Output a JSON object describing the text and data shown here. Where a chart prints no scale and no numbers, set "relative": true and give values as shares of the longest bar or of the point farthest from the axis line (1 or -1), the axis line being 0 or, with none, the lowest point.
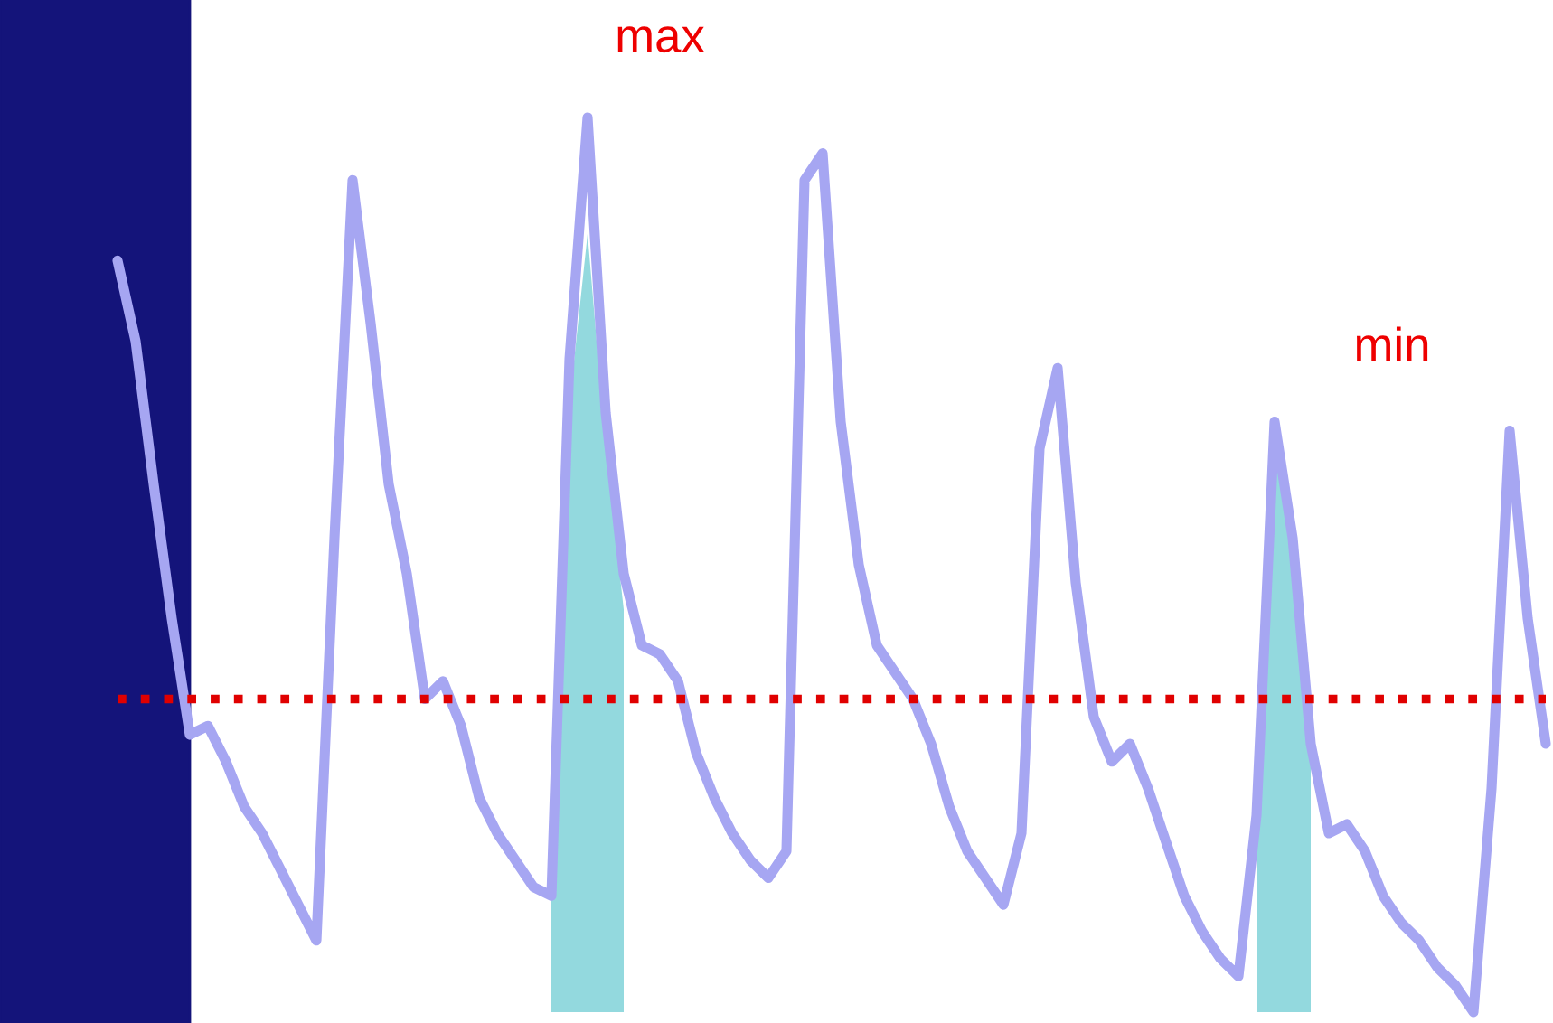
{
  "chart_data": {
    "type": "line",
    "relative": true,
    "categories": [
      null,
      null,
      null,
      null,
      null,
      null,
      null,
      null,
      null,
      null,
      null,
      null,
      null,
      null,
      null,
      null,
      null,
      null,
      null,
      null,
      null,
      null,
      null,
      null,
      null,
      null,
      null,
      null,
      null,
      null,
      null,
      null,
      null,
      null,
      null,
      null,
      null,
      null,
      null,
      null,
      null,
      null,
      null,
      null,
      null,
      null,
      null,
      null,
      null,
      null,
      null,
      null,
      null,
      null,
      null,
      null,
      null,
      null,
      null,
      null,
      null,
      null,
      null,
      null,
      null,
      null,
      null,
      null,
      null,
      null,
      null,
      null,
      null,
      null,
      null,
      null,
      null,
      null,
      null,
      null
    ],
    "series": [
      {
        "color": "#a6a6f2",
        "values": [
          0.84,
          0.75,
          0.59,
          0.44,
          0.31,
          0.32,
          0.28,
          0.23,
          0.2,
          0.16,
          0.12,
          0.08,
          0.53,
          0.93,
          0.77,
          0.59,
          0.49,
          0.35,
          0.37,
          0.32,
          0.24,
          0.2,
          0.17,
          0.14,
          0.13,
          0.73,
          1.0,
          0.67,
          0.49,
          0.41,
          0.4,
          0.37,
          0.29,
          0.24,
          0.2,
          0.17,
          0.15,
          0.18,
          0.93,
          0.96,
          0.66,
          0.5,
          0.41,
          0.38,
          0.35,
          0.3,
          0.23,
          0.18,
          0.15,
          0.12,
          0.2,
          0.63,
          0.72,
          0.48,
          0.33,
          0.28,
          0.3,
          0.25,
          0.19,
          0.13,
          0.09,
          0.06,
          0.04,
          0.22,
          0.66,
          0.53,
          0.3,
          0.2,
          0.21,
          0.18,
          0.13,
          0.1,
          0.08,
          0.05,
          0.03,
          0.0,
          0.25,
          0.65,
          0.44,
          0.3
        ]
      },
      {
        "type": "area",
        "color": "#93d9de",
        "values": [
          null,
          null,
          null,
          null,
          null,
          null,
          null,
          null,
          null,
          null,
          null,
          null,
          null,
          null,
          null,
          null,
          null,
          null,
          null,
          null,
          null,
          null,
          null,
          null,
          0.13,
          0.68,
          0.87,
          0.63,
          0.45,
          null,
          null,
          null,
          null,
          null,
          null,
          null,
          null,
          null,
          null,
          null,
          null,
          null,
          null,
          null,
          null,
          null,
          null,
          null,
          null,
          null,
          null,
          null,
          null,
          null,
          null,
          null,
          null,
          null,
          null,
          null,
          null,
          null,
          null,
          0.2,
          0.66,
          0.5,
          0.29,
          null,
          null,
          null,
          null,
          null,
          null,
          null,
          null,
          null,
          null,
          null,
          null,
          null
        ]
      },
      {
        "color": "#e00000",
        "line_style": "dotted",
        "values": [
          0.35,
          0.35,
          0.35,
          0.35,
          0.35,
          0.35,
          0.35,
          0.35,
          0.35,
          0.35,
          0.35,
          0.35,
          0.35,
          0.35,
          0.35,
          0.35,
          0.35,
          0.35,
          0.35,
          0.35,
          0.35,
          0.35,
          0.35,
          0.35,
          0.35,
          0.35,
          0.35,
          0.35,
          0.35,
          0.35,
          0.35,
          0.35,
          0.35,
          0.35,
          0.35,
          0.35,
          0.35,
          0.35,
          0.35,
          0.35,
          0.35,
          0.35,
          0.35,
          0.35,
          0.35,
          0.35,
          0.35,
          0.35,
          0.35,
          0.35,
          0.35,
          0.35,
          0.35,
          0.35,
          0.35,
          0.35,
          0.35,
          0.35,
          0.35,
          0.35,
          0.35,
          0.35,
          0.35,
          0.35,
          0.35,
          0.35,
          0.35,
          0.35,
          0.35,
          0.35,
          0.35,
          0.35,
          0.35,
          0.35,
          0.35,
          0.35,
          0.35,
          0.35,
          0.35,
          0.35
        ]
      }
    ],
    "annotations": [
      "max",
      "min"
    ]
  }
}
